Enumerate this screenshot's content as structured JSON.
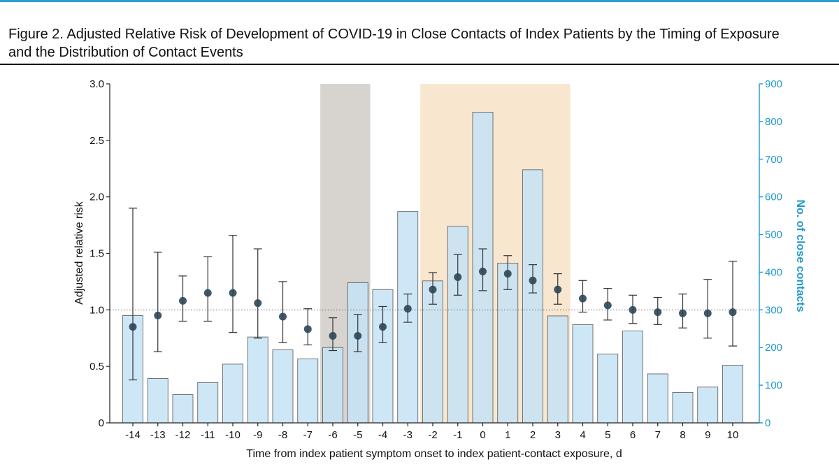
{
  "figure": {
    "title_line1": "Figure 2. Adjusted Relative Risk of Development of COVID-19 in Close Contacts of Index Patients by the Timing of Exposure",
    "title_line2": "and the Distribution of Contact Events"
  },
  "colors": {
    "accent_rule": "#2f9fcf",
    "bar_fill": "#c5e3f6",
    "bar_stroke": "#555555",
    "point_fill": "#2c4656",
    "right_axis": "#1f9ac9",
    "shade_gray": "#d7d3ce",
    "shade_orange": "#f9e6cf"
  },
  "chart_data": {
    "type": "bar+errorbar",
    "xlabel": "Time from index patient symptom onset to index patient-contact exposure, d",
    "ylabel_left": "Adjusted relative risk",
    "ylabel_right": "No. of close contacts",
    "ylim_left": [
      0,
      3.0
    ],
    "ylim_right": [
      0,
      900
    ],
    "yticks_left": [
      "0",
      "0.5",
      "1.0",
      "1.5",
      "2.0",
      "2.5",
      "3.0"
    ],
    "yticks_right": [
      "0",
      "100",
      "200",
      "300",
      "400",
      "500",
      "600",
      "700",
      "800",
      "900"
    ],
    "reference_line": 1.0,
    "x": [
      "-14",
      "-13",
      "-12",
      "-11",
      "-10",
      "-9",
      "-8",
      "-7",
      "-6",
      "-5",
      "-4",
      "-3",
      "-2",
      "-1",
      "0",
      "1",
      "2",
      "3",
      "4",
      "5",
      "6",
      "7",
      "8",
      "9",
      "10"
    ],
    "contacts": [
      285,
      118,
      75,
      107,
      156,
      228,
      194,
      170,
      200,
      372,
      354,
      561,
      377,
      522,
      825,
      424,
      672,
      284,
      261,
      183,
      244,
      130,
      81,
      95,
      153
    ],
    "rr": [
      0.85,
      0.95,
      1.08,
      1.15,
      1.15,
      1.06,
      0.94,
      0.83,
      0.77,
      0.77,
      0.85,
      1.01,
      1.18,
      1.29,
      1.34,
      1.32,
      1.26,
      1.18,
      1.1,
      1.04,
      1.0,
      0.98,
      0.97,
      0.97,
      0.98
    ],
    "rr_lower": [
      0.38,
      0.63,
      0.9,
      0.9,
      0.8,
      0.75,
      0.71,
      0.69,
      0.64,
      0.63,
      0.71,
      0.89,
      1.05,
      1.13,
      1.17,
      1.18,
      1.15,
      1.05,
      0.98,
      0.91,
      0.88,
      0.87,
      0.84,
      0.75,
      0.68
    ],
    "rr_upper": [
      1.9,
      1.51,
      1.3,
      1.47,
      1.66,
      1.54,
      1.25,
      1.01,
      0.93,
      0.96,
      1.03,
      1.14,
      1.33,
      1.49,
      1.54,
      1.48,
      1.4,
      1.32,
      1.26,
      1.19,
      1.13,
      1.11,
      1.14,
      1.27,
      1.43
    ],
    "shaded_regions": [
      {
        "from": "-6",
        "to": "-5",
        "color": "gray"
      },
      {
        "from": "-2",
        "to": "3",
        "color": "orange"
      }
    ]
  }
}
